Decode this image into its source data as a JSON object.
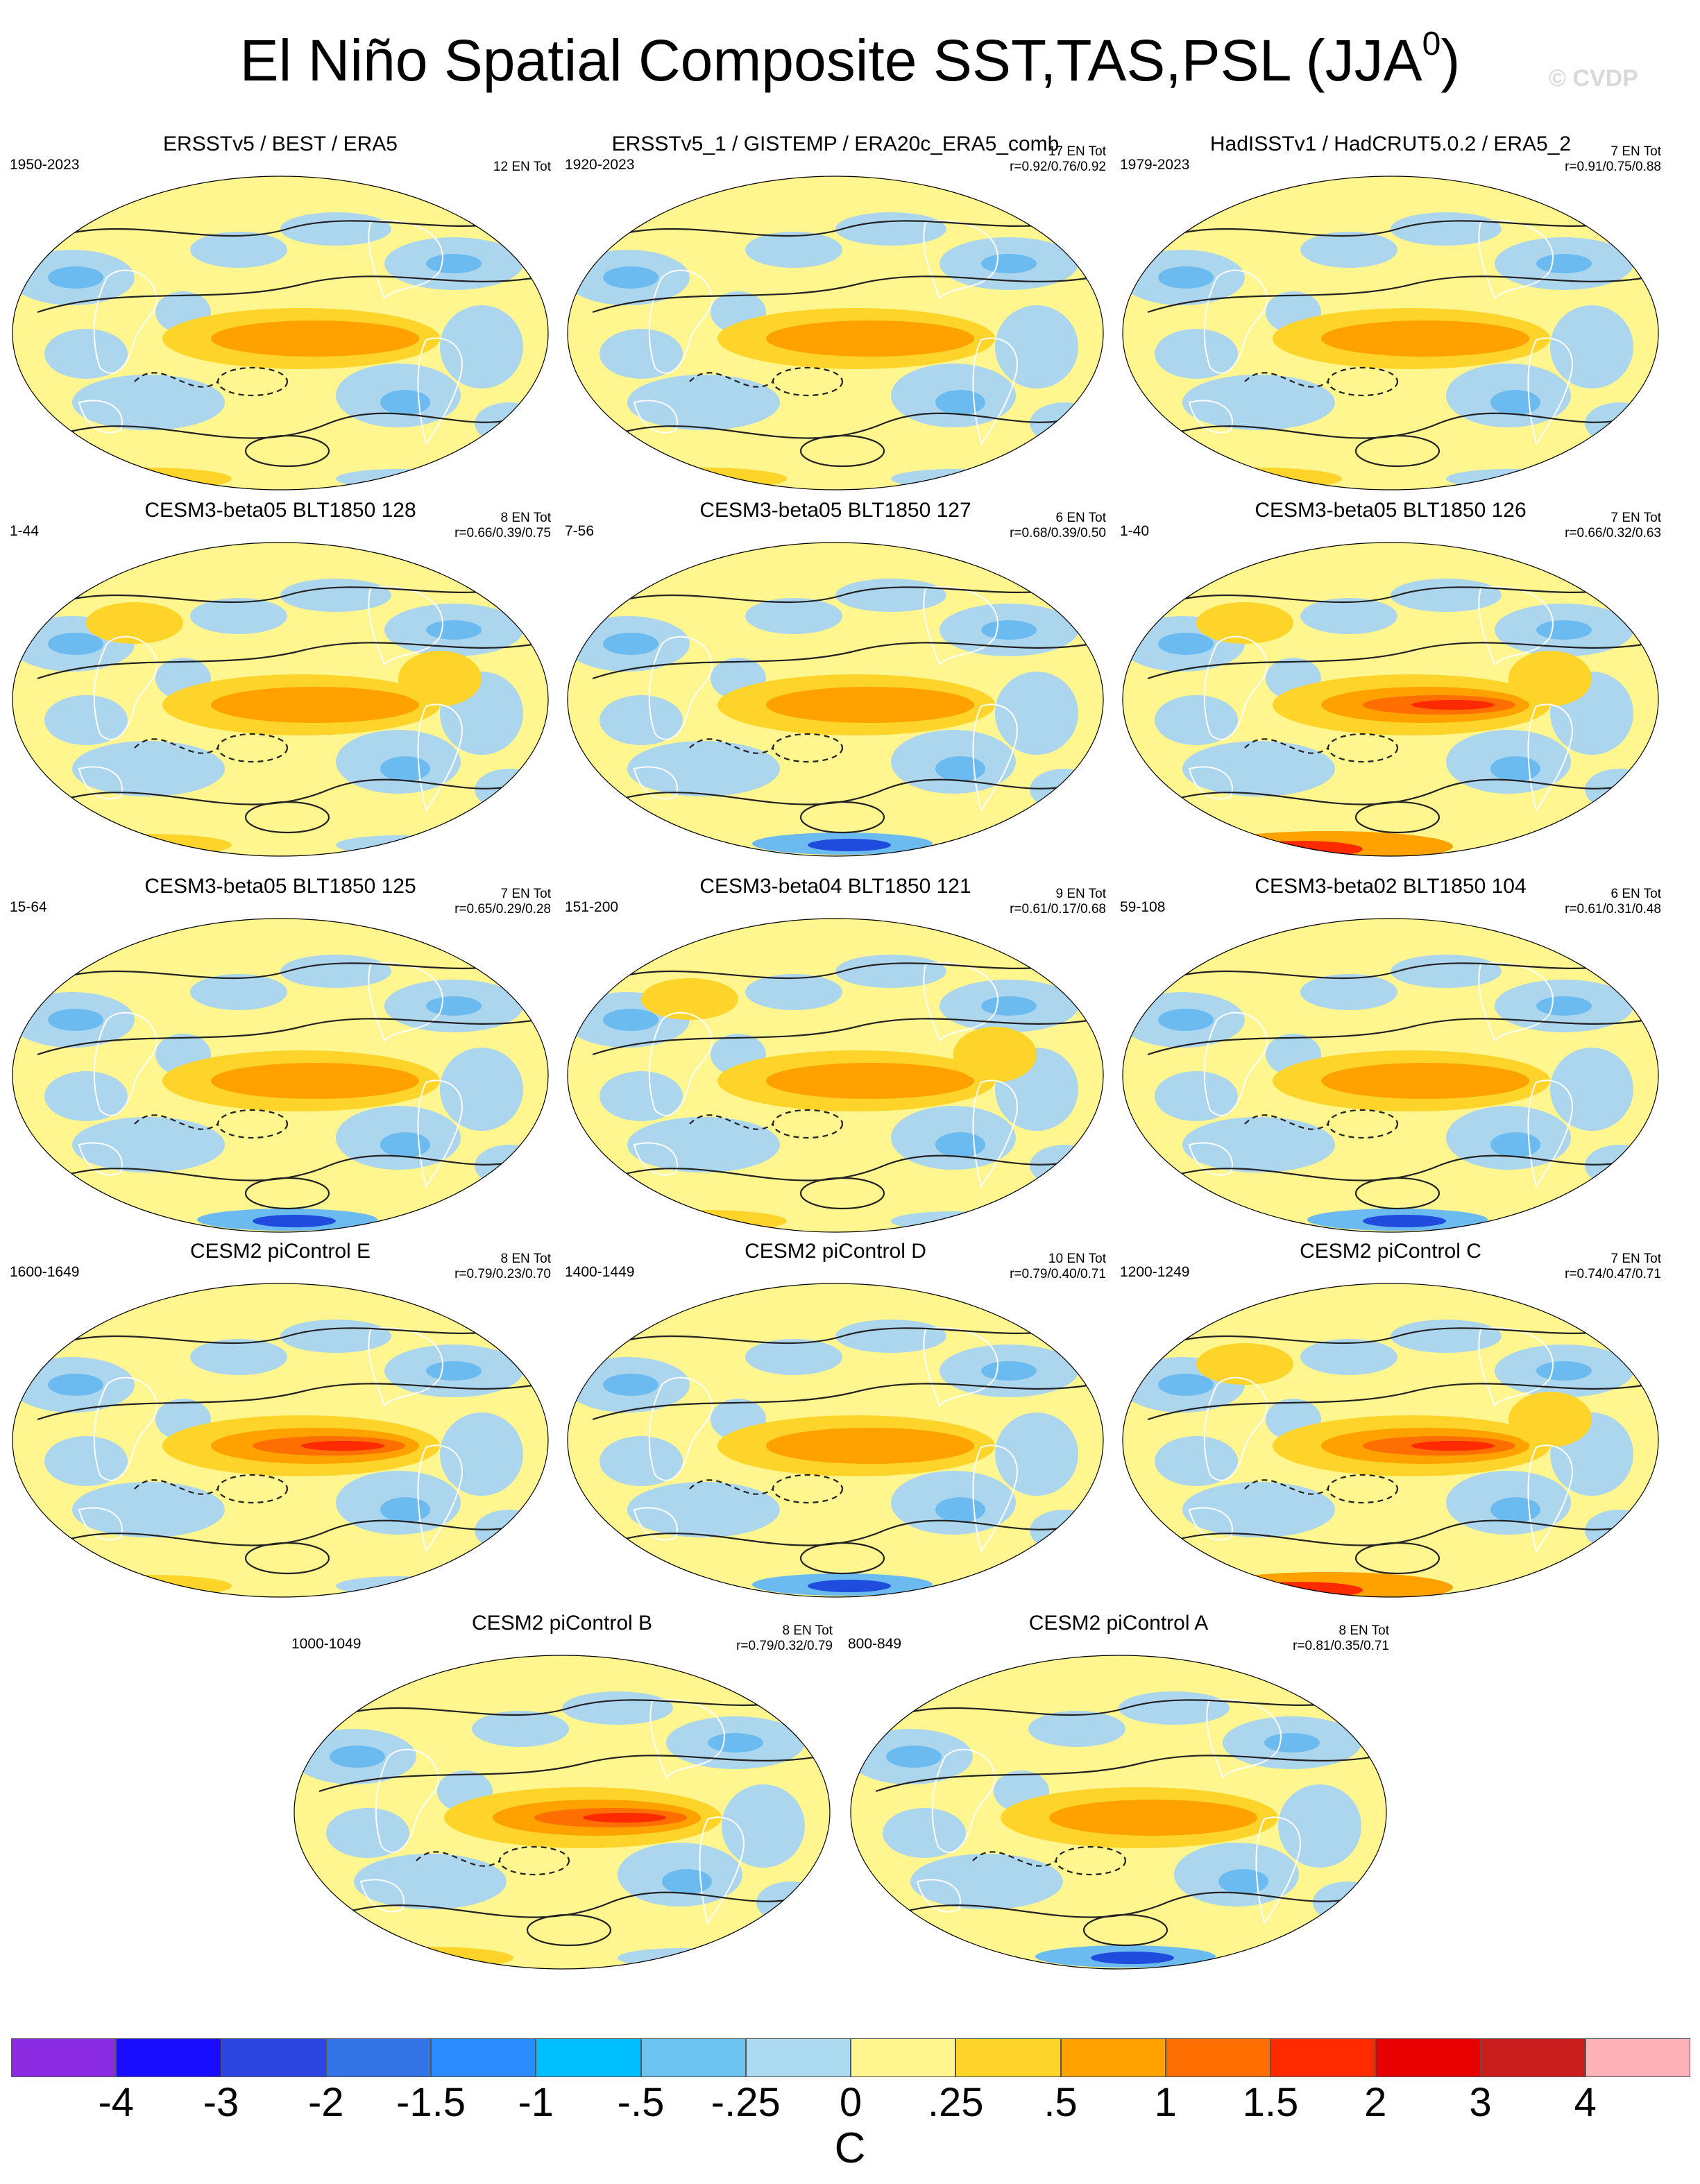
{
  "title": {
    "main": "El Niño Spatial Composite SST,TAS,PSL (JJA",
    "superscript": "0",
    "close": ")"
  },
  "watermark": "© CVDP",
  "palette": {
    "ocean_light_blue": "#acd5ee",
    "ocean_blue": "#6bbbf0",
    "pale_yellow": "#fff68f",
    "yellow": "#ffd42a",
    "orange": "#ffa200",
    "deep_orange": "#ff6e00",
    "red": "#ff2a00",
    "strong_blue": "#1f4cdd",
    "contour": "#222222",
    "coast": "#ffffff"
  },
  "panels": [
    {
      "title": "ERSSTv5 / BEST / ERA5",
      "years": "1950-2023",
      "count": "12 EN Tot",
      "corr": "",
      "style": "obs"
    },
    {
      "title": "ERSSTv5_1 / GISTEMP / ERA20c_ERA5_comb",
      "years": "1920-2023",
      "count": "17 EN Tot",
      "corr": "r=0.92/0.76/0.92",
      "style": "obs"
    },
    {
      "title": "HadISSTv1 / HadCRUT5.0.2 / ERA5_2",
      "years": "1979-2023",
      "count": "7 EN Tot",
      "corr": "r=0.91/0.75/0.88",
      "style": "obs"
    },
    {
      "title": "CESM3-beta05 BLT1850 128",
      "years": "1-44",
      "count": "8 EN Tot",
      "corr": "r=0.66/0.39/0.75",
      "style": "warm"
    },
    {
      "title": "CESM3-beta05 BLT1850 127",
      "years": "7-56",
      "count": "6 EN Tot",
      "corr": "r=0.68/0.39/0.50",
      "style": "blue-south"
    },
    {
      "title": "CESM3-beta05 BLT1850 126",
      "years": "1-40",
      "count": "7 EN Tot",
      "corr": "r=0.66/0.32/0.63",
      "style": "red-south"
    },
    {
      "title": "CESM3-beta05 BLT1850 125",
      "years": "15-64",
      "count": "7 EN Tot",
      "corr": "r=0.65/0.29/0.28",
      "style": "blue-south"
    },
    {
      "title": "CESM3-beta04 BLT1850 121",
      "years": "151-200",
      "count": "9 EN Tot",
      "corr": "r=0.61/0.17/0.68",
      "style": "warm"
    },
    {
      "title": "CESM3-beta02 BLT1850 104",
      "years": "59-108",
      "count": "6 EN Tot",
      "corr": "r=0.61/0.31/0.48",
      "style": "blue-south"
    },
    {
      "title": "CESM2 piControl E",
      "years": "1600-1649",
      "count": "8 EN Tot",
      "corr": "r=0.79/0.23/0.70",
      "style": "strong"
    },
    {
      "title": "CESM2 piControl D",
      "years": "1400-1449",
      "count": "10 EN Tot",
      "corr": "r=0.79/0.40/0.71",
      "style": "blue-south"
    },
    {
      "title": "CESM2 piControl C",
      "years": "1200-1249",
      "count": "7 EN Tot",
      "corr": "r=0.74/0.47/0.71",
      "style": "red-south"
    },
    {
      "title": "CESM2 piControl B",
      "years": "1000-1049",
      "count": "8 EN Tot",
      "corr": "r=0.79/0.32/0.79",
      "style": "strong"
    },
    {
      "title": "CESM2 piControl A",
      "years": "800-849",
      "count": "8 EN Tot",
      "corr": "r=0.81/0.35/0.71",
      "style": "blue-south"
    }
  ],
  "colorbar": {
    "colors": [
      "#8a2be2",
      "#1a0dff",
      "#2b46e0",
      "#3274e6",
      "#2b8cff",
      "#00bfff",
      "#6bc4f0",
      "#acdaf0",
      "#fff68f",
      "#ffd42a",
      "#ffa200",
      "#ff6e00",
      "#ff2a00",
      "#e60000",
      "#c81e1e",
      "#ffb1b9"
    ],
    "labels": [
      "-4",
      "-3",
      "-2",
      "-1.5",
      "-1",
      "-.5",
      "-.25",
      "0",
      ".25",
      ".5",
      "1",
      "1.5",
      "2",
      "3",
      "4"
    ],
    "units": "C"
  }
}
